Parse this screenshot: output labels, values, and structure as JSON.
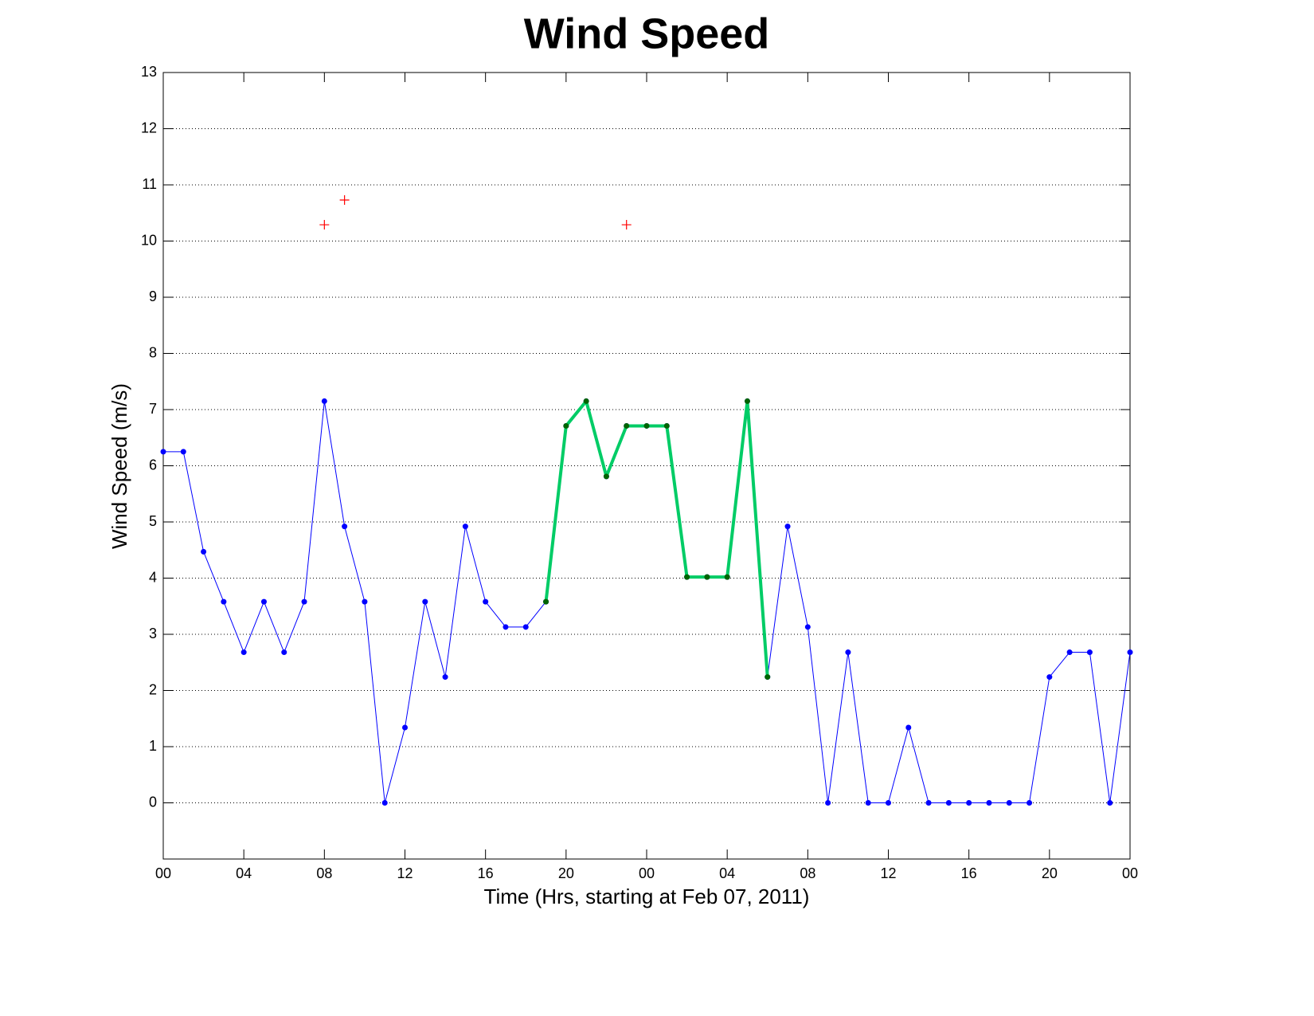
{
  "chart_data": {
    "type": "line",
    "title": "Wind Speed",
    "xlabel": "Time (Hrs, starting at Feb 07, 2011)",
    "ylabel": "Wind Speed (m/s)",
    "x": [
      0,
      1,
      2,
      3,
      4,
      5,
      6,
      7,
      8,
      9,
      10,
      11,
      12,
      13,
      14,
      15,
      16,
      17,
      18,
      19,
      20,
      21,
      22,
      23,
      24,
      25,
      26,
      27,
      28,
      29,
      30,
      31,
      32,
      33,
      34,
      35,
      36,
      37,
      38,
      39,
      40,
      41,
      42,
      43,
      44,
      45,
      46,
      47,
      48
    ],
    "xlim": [
      0,
      48
    ],
    "xticks": [
      {
        "value": 0,
        "label": "00"
      },
      {
        "value": 4,
        "label": "04"
      },
      {
        "value": 8,
        "label": "08"
      },
      {
        "value": 12,
        "label": "12"
      },
      {
        "value": 16,
        "label": "16"
      },
      {
        "value": 20,
        "label": "20"
      },
      {
        "value": 24,
        "label": "00"
      },
      {
        "value": 28,
        "label": "04"
      },
      {
        "value": 32,
        "label": "08"
      },
      {
        "value": 36,
        "label": "12"
      },
      {
        "value": 40,
        "label": "16"
      },
      {
        "value": 44,
        "label": "20"
      },
      {
        "value": 48,
        "label": "00"
      }
    ],
    "ylim": [
      -1,
      13
    ],
    "yticks": [
      0,
      1,
      2,
      3,
      4,
      5,
      6,
      7,
      8,
      9,
      10,
      11,
      12,
      13
    ],
    "grid": "y",
    "series": [
      {
        "color": "#0000ff",
        "marker_color": "#0000ff",
        "marker": "dot",
        "line": true,
        "linewidth": 1,
        "values": [
          6.25,
          6.25,
          4.47,
          3.58,
          2.68,
          3.58,
          2.68,
          3.58,
          7.15,
          4.92,
          3.58,
          0,
          1.34,
          3.58,
          2.24,
          4.92,
          3.58,
          3.13,
          3.13,
          3.58,
          6.71,
          7.15,
          5.81,
          6.71,
          6.71,
          6.71,
          4.02,
          4.02,
          4.02,
          7.15,
          2.24,
          4.92,
          3.13,
          0,
          2.68,
          0,
          0,
          1.34,
          0,
          0,
          0,
          0,
          0,
          0,
          2.24,
          2.68,
          2.68,
          0,
          2.68
        ]
      },
      {
        "color": "#00cc66",
        "marker_color": "#006400",
        "marker": "dot",
        "line": true,
        "linewidth": 4,
        "values": [
          null,
          null,
          null,
          null,
          null,
          null,
          null,
          null,
          null,
          null,
          null,
          null,
          null,
          null,
          null,
          null,
          null,
          null,
          null,
          3.58,
          6.71,
          7.15,
          5.81,
          6.71,
          6.71,
          6.71,
          4.02,
          4.02,
          4.02,
          7.15,
          2.24,
          null,
          null,
          null,
          null,
          null,
          null,
          null,
          null,
          null,
          null,
          null,
          null,
          null,
          null,
          null,
          null,
          null,
          null
        ]
      },
      {
        "color": "#ff0000",
        "marker_color": "#ff0000",
        "marker": "plus",
        "line": false,
        "linewidth": 1,
        "values": [
          null,
          null,
          null,
          null,
          null,
          null,
          null,
          null,
          10.29,
          10.73,
          null,
          null,
          null,
          null,
          null,
          null,
          null,
          null,
          null,
          null,
          null,
          null,
          null,
          10.29,
          null,
          null,
          null,
          null,
          null,
          null,
          null,
          null,
          null,
          null,
          null,
          null,
          null,
          null,
          null,
          null,
          null,
          null,
          null,
          null,
          null,
          null,
          null,
          null,
          null
        ]
      }
    ]
  }
}
